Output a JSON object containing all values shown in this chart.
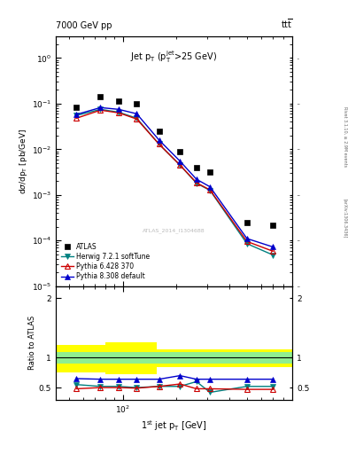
{
  "atlas_x": [
    55,
    75,
    95,
    120,
    160,
    210,
    260,
    310,
    500,
    700
  ],
  "atlas_y": [
    0.085,
    0.145,
    0.115,
    0.1,
    0.025,
    0.009,
    0.004,
    0.0032,
    0.00025,
    0.00022
  ],
  "herwig_x": [
    55,
    75,
    95,
    120,
    160,
    210,
    260,
    310,
    500,
    700
  ],
  "herwig_y": [
    0.055,
    0.075,
    0.065,
    0.048,
    0.013,
    0.0045,
    0.0018,
    0.00125,
    8.5e-05,
    4.8e-05
  ],
  "herwig_color": "#008080",
  "pythia6_x": [
    55,
    75,
    95,
    120,
    160,
    210,
    260,
    310,
    500,
    700
  ],
  "pythia6_y": [
    0.048,
    0.072,
    0.063,
    0.046,
    0.013,
    0.0045,
    0.00185,
    0.00128,
    9.5e-05,
    5.8e-05
  ],
  "pythia6_color": "#cc0000",
  "pythia8_x": [
    55,
    75,
    95,
    120,
    160,
    210,
    260,
    310,
    500,
    700
  ],
  "pythia8_y": [
    0.058,
    0.082,
    0.075,
    0.06,
    0.016,
    0.0055,
    0.0022,
    0.0015,
    0.00011,
    7.2e-05
  ],
  "pythia8_color": "#0000cc",
  "herwig_ratio": [
    0.55,
    0.52,
    0.52,
    0.5,
    0.52,
    0.52,
    0.6,
    0.42,
    0.52,
    0.52
  ],
  "pythia6_ratio": [
    0.48,
    0.5,
    0.5,
    0.49,
    0.52,
    0.56,
    0.48,
    0.48,
    0.47,
    0.47
  ],
  "pythia8_ratio": [
    0.65,
    0.64,
    0.64,
    0.64,
    0.64,
    0.7,
    0.64,
    0.64,
    0.64,
    0.64
  ],
  "xlim": [
    42,
    900
  ],
  "ylim_main": [
    1e-05,
    3.0
  ],
  "ylim_ratio": [
    0.3,
    2.2
  ]
}
